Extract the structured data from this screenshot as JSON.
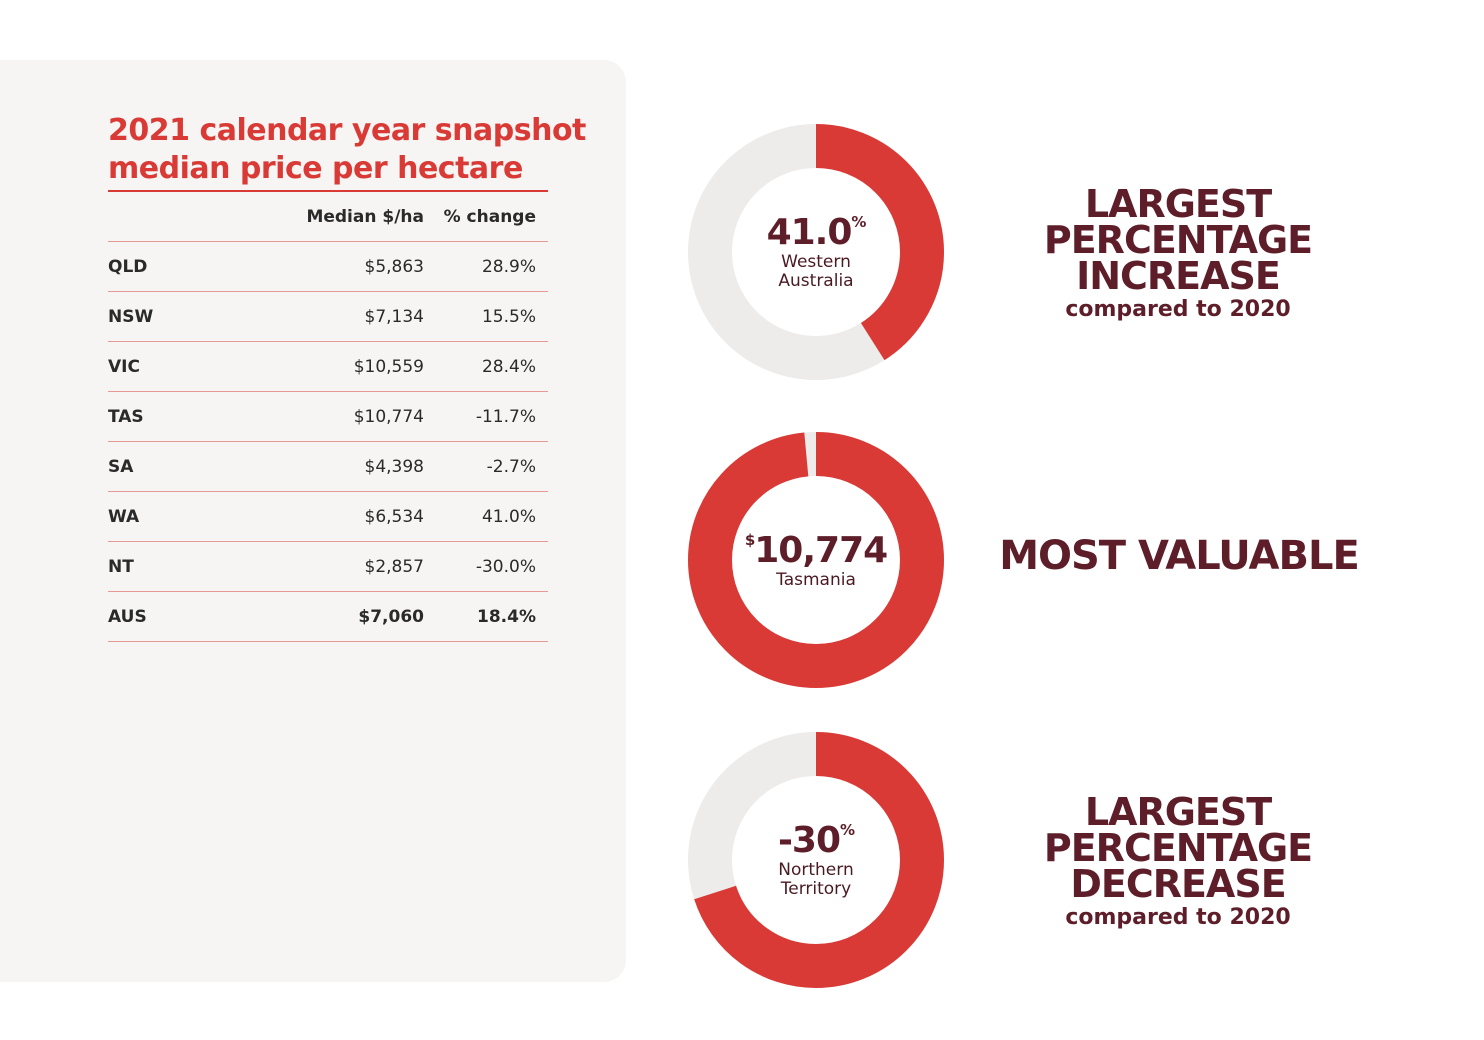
{
  "chart_data": [
    {
      "type": "table",
      "title": "2021 calendar year snapshot",
      "subtitle": "median price per hectare",
      "columns": [
        "",
        "Median $/ha",
        "% change"
      ],
      "rows": [
        {
          "state": "QLD",
          "median": "$5,863",
          "change": "28.9%"
        },
        {
          "state": "NSW",
          "median": "$7,134",
          "change": "15.5%"
        },
        {
          "state": "VIC",
          "median": "$10,559",
          "change": "28.4%"
        },
        {
          "state": "TAS",
          "median": "$10,774",
          "change": "-11.7%"
        },
        {
          "state": "SA",
          "median": "$4,398",
          "change": "-2.7%"
        },
        {
          "state": "WA",
          "median": "$6,534",
          "change": "41.0%"
        },
        {
          "state": "NT",
          "median": "$2,857",
          "change": "-30.0%"
        },
        {
          "state": "AUS",
          "median": "$7,060",
          "change": "18.4%",
          "bold": true
        }
      ]
    },
    {
      "type": "pie",
      "value_text": "41.0",
      "value_suffix": "%",
      "label": "Western Australia",
      "fraction": 0.41,
      "headline": [
        "LARGEST",
        "PERCENTAGE",
        "INCREASE"
      ],
      "subtext": "compared to 2020"
    },
    {
      "type": "pie",
      "value_prefix": "$",
      "value_text": "10,774",
      "label": "Tasmania",
      "fraction": 0.985,
      "headline": [
        "MOST VALUABLE"
      ],
      "subtext": ""
    },
    {
      "type": "pie",
      "value_text": "-30",
      "value_suffix": "%",
      "label": "Northern Territory",
      "fraction": 0.7,
      "headline": [
        "LARGEST",
        "PERCENTAGE",
        "DECREASE"
      ],
      "subtext": "compared to 2020"
    }
  ],
  "colors": {
    "accent": "#d93a36",
    "track": "#eeecea",
    "dark": "#5e1e29",
    "panel": "#f6f5f3"
  }
}
